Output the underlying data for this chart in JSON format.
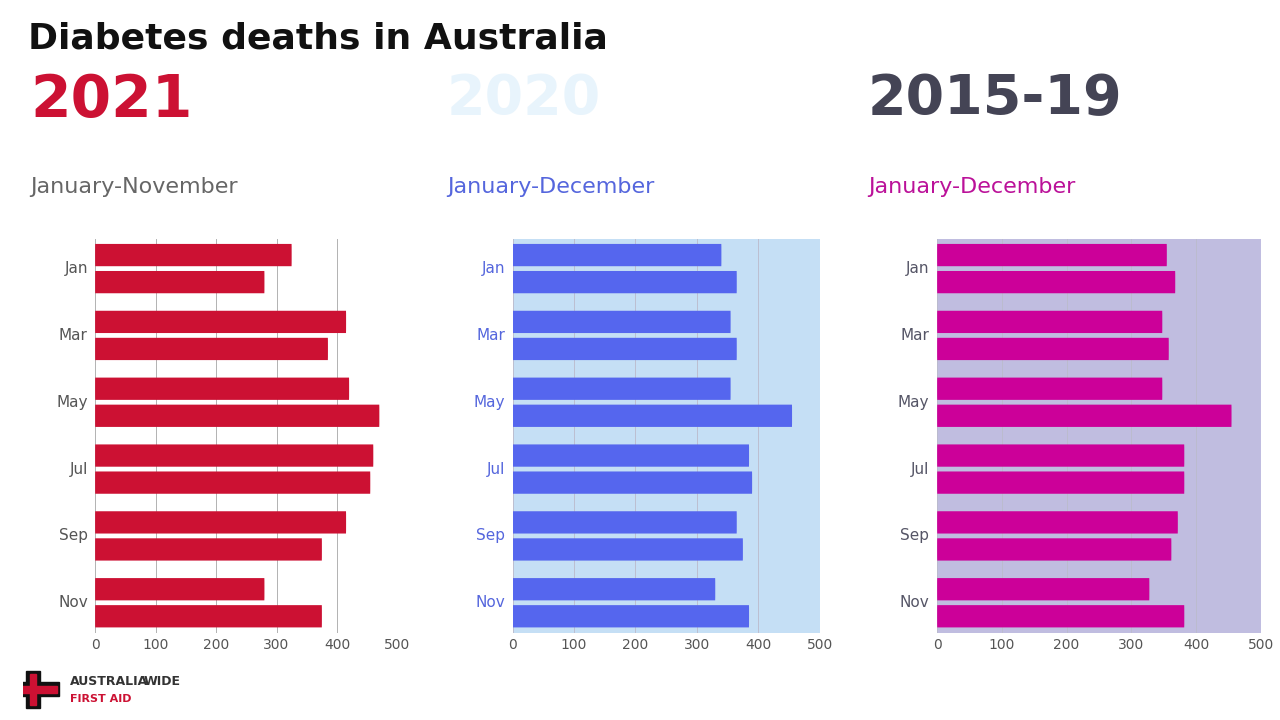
{
  "title": "Diabetes deaths in Australia",
  "title_fontsize": 26,
  "title_color": "#111111",
  "bg_color": "#ffffff",
  "chart2021": {
    "year": "2021",
    "subtitle": "January-November",
    "year_color": "#cc1133",
    "subtitle_color": "#666666",
    "bg_color": "#ffffff",
    "bar_color": "#cc1133",
    "month_label_color": "#555555",
    "months": [
      "Jan",
      "Mar",
      "May",
      "Jul",
      "Sep",
      "Nov"
    ],
    "values": [
      [
        325,
        280
      ],
      [
        415,
        385
      ],
      [
        420,
        470
      ],
      [
        460,
        455
      ],
      [
        415,
        375
      ],
      [
        280,
        375
      ]
    ]
  },
  "chart2020": {
    "year": "2020",
    "subtitle": "January-December",
    "year_color": "#e8f4fc",
    "subtitle_color": "#5566dd",
    "bg_color": "#c5dff5",
    "bar_color": "#5566ee",
    "month_label_color": "#5566dd",
    "months": [
      "Jan",
      "Mar",
      "May",
      "Jul",
      "Sep",
      "Nov"
    ],
    "values": [
      [
        340,
        365
      ],
      [
        355,
        365
      ],
      [
        355,
        455
      ],
      [
        385,
        390
      ],
      [
        365,
        375
      ],
      [
        330,
        385
      ]
    ]
  },
  "chart201519": {
    "year": "2015-19",
    "subtitle": "January-December",
    "year_color": "#444455",
    "subtitle_color": "#bb1199",
    "bg_color": "#c0bde0",
    "bar_color": "#cc0099",
    "month_label_color": "#555566",
    "months": [
      "Jan",
      "Mar",
      "May",
      "Jul",
      "Sep",
      "Nov"
    ],
    "values": [
      [
        355,
        368
      ],
      [
        348,
        358
      ],
      [
        348,
        455
      ],
      [
        382,
        382
      ],
      [
        372,
        362
      ],
      [
        328,
        382
      ]
    ]
  },
  "xlim": [
    0,
    500
  ],
  "xticks": [
    0,
    100,
    200,
    300,
    400,
    500
  ]
}
